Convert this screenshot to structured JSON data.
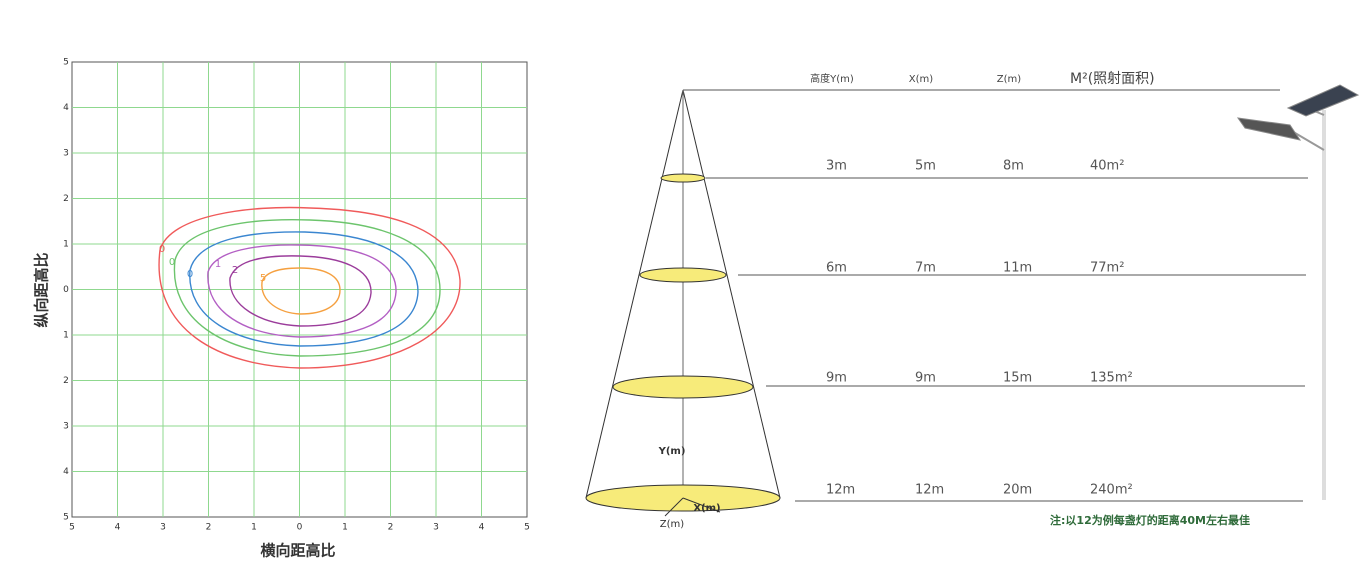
{
  "isolux_chart": {
    "y_axis_label": "纵向距高比",
    "x_axis_label": "横向距高比",
    "x_ticks": [
      "5",
      "4",
      "3",
      "2",
      "1",
      "0",
      "1",
      "2",
      "3",
      "4",
      "5"
    ],
    "y_ticks": [
      "5",
      "4",
      "3",
      "2",
      "1",
      "0",
      "1",
      "2",
      "3",
      "4",
      "5"
    ],
    "contour_labels": [
      "0",
      "0",
      "0",
      "1",
      "2",
      "5"
    ]
  },
  "cone_table": {
    "headers": [
      "高度Y(m)",
      "X(m)",
      "Z(m)",
      "M²(照射面积)"
    ],
    "rows": [
      [
        "3m",
        "5m",
        "8m",
        "40m²"
      ],
      [
        "6m",
        "7m",
        "11m",
        "77m²"
      ],
      [
        "9m",
        "9m",
        "15m",
        "135m²"
      ],
      [
        "12m",
        "12m",
        "20m",
        "240m²"
      ]
    ]
  },
  "cone_labels": {
    "y": "Y(m)",
    "x": "X(m)",
    "z": "Z(m)"
  },
  "note": "注:以12为例每盏灯的距离40M左右最佳"
}
